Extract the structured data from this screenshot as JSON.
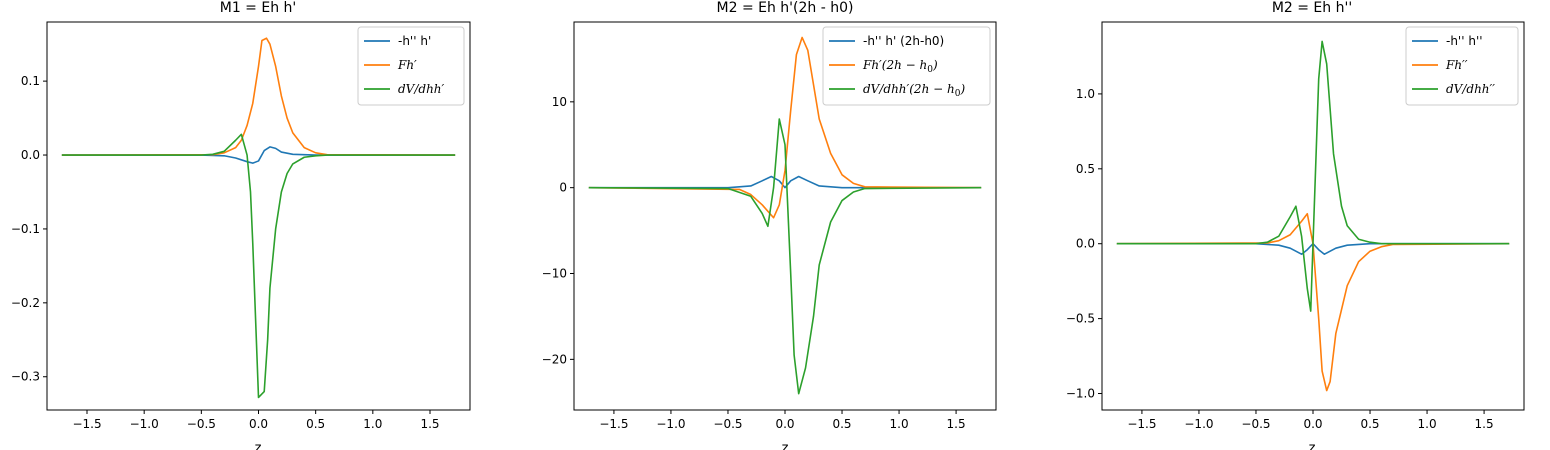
{
  "chart_data": [
    {
      "type": "line",
      "title": "M1 = Eh h'",
      "xlabel": "z",
      "ylabel": "",
      "xlim": [
        -1.85,
        1.85
      ],
      "ylim": [
        -0.345,
        0.18
      ],
      "xticks": [
        -1.5,
        -1.0,
        -0.5,
        0.0,
        0.5,
        1.0,
        1.5
      ],
      "xtick_labels": [
        "−1.5",
        "−1.0",
        "−0.5",
        "0.0",
        "0.5",
        "1.0",
        "1.5"
      ],
      "yticks": [
        0.1,
        0.0,
        -0.1,
        -0.2,
        -0.3
      ],
      "ytick_labels": [
        "0.1",
        "0.0",
        "−0.1",
        "−0.2",
        "−0.3"
      ],
      "legend": "top-right",
      "grid": false,
      "series": [
        {
          "name": "-h'' h'",
          "color": "#1f77b4",
          "x": [
            -1.72,
            -0.5,
            -0.3,
            -0.2,
            -0.1,
            -0.05,
            0.0,
            0.05,
            0.1,
            0.15,
            0.2,
            0.3,
            0.5,
            1.72
          ],
          "y": [
            0,
            0,
            -0.001,
            -0.004,
            -0.009,
            -0.011,
            -0.008,
            0.006,
            0.011,
            0.009,
            0.004,
            0.001,
            0,
            0
          ]
        },
        {
          "name": "Fh′",
          "color": "#ff7f0e",
          "x": [
            -1.72,
            -0.4,
            -0.3,
            -0.2,
            -0.15,
            -0.1,
            -0.05,
            0.0,
            0.03,
            0.07,
            0.1,
            0.15,
            0.2,
            0.25,
            0.3,
            0.4,
            0.5,
            0.6,
            1.72
          ],
          "y": [
            0,
            0.0005,
            0.003,
            0.01,
            0.02,
            0.04,
            0.07,
            0.12,
            0.155,
            0.158,
            0.15,
            0.12,
            0.08,
            0.05,
            0.03,
            0.01,
            0.003,
            0.0005,
            0
          ]
        },
        {
          "name": "dV/dhh′",
          "color": "#2ca02c",
          "x": [
            -1.72,
            -0.5,
            -0.4,
            -0.3,
            -0.2,
            -0.15,
            -0.1,
            -0.07,
            -0.05,
            0.0,
            0.05,
            0.08,
            0.1,
            0.15,
            0.2,
            0.25,
            0.3,
            0.4,
            0.5,
            0.6,
            1.72
          ],
          "y": [
            0,
            0,
            0.001,
            0.005,
            0.02,
            0.028,
            0.0,
            -0.05,
            -0.12,
            -0.328,
            -0.32,
            -0.25,
            -0.18,
            -0.1,
            -0.05,
            -0.025,
            -0.012,
            -0.003,
            -0.001,
            0,
            0
          ]
        }
      ]
    },
    {
      "type": "line",
      "title": "M2 = Eh h'(2h - h0)",
      "xlabel": "z",
      "ylabel": "",
      "xlim": [
        -1.85,
        1.85
      ],
      "ylim": [
        -25.9,
        19.3
      ],
      "xticks": [
        -1.5,
        -1.0,
        -0.5,
        0.0,
        0.5,
        1.0,
        1.5
      ],
      "xtick_labels": [
        "−1.5",
        "−1.0",
        "−0.5",
        "0.0",
        "0.5",
        "1.0",
        "1.5"
      ],
      "yticks": [
        10,
        0,
        -10,
        -20
      ],
      "ytick_labels": [
        "10",
        "0",
        "−10",
        "−20"
      ],
      "legend": "top-right",
      "grid": false,
      "series": [
        {
          "name": "-h'' h' (2h-h0)",
          "color": "#1f77b4",
          "x": [
            -1.72,
            -0.5,
            -0.3,
            -0.2,
            -0.12,
            -0.05,
            0.0,
            0.05,
            0.12,
            0.2,
            0.3,
            0.5,
            1.72
          ],
          "y": [
            0,
            0,
            0.2,
            0.8,
            1.3,
            0.8,
            0.0,
            0.8,
            1.3,
            0.8,
            0.2,
            0,
            0
          ]
        },
        {
          "name": "Fh′(2h − h0)",
          "color": "#ff7f0e",
          "x": [
            -1.72,
            -0.4,
            -0.3,
            -0.2,
            -0.1,
            -0.05,
            0.0,
            0.05,
            0.1,
            0.15,
            0.2,
            0.25,
            0.3,
            0.4,
            0.5,
            0.6,
            0.7,
            1.72
          ],
          "y": [
            0,
            -0.2,
            -0.8,
            -2.0,
            -3.5,
            -2.0,
            2.0,
            9.0,
            15.5,
            17.5,
            16.0,
            12.0,
            8.0,
            4.0,
            1.5,
            0.5,
            0.1,
            0
          ]
        },
        {
          "name": "dV/dhh′(2h − h0)",
          "color": "#2ca02c",
          "x": [
            -1.72,
            -0.5,
            -0.3,
            -0.2,
            -0.15,
            -0.1,
            -0.05,
            0.0,
            0.05,
            0.08,
            0.12,
            0.18,
            0.25,
            0.3,
            0.4,
            0.5,
            0.6,
            0.7,
            1.72
          ],
          "y": [
            0,
            -0.1,
            -1.0,
            -3.0,
            -4.5,
            0.0,
            8.0,
            5.0,
            -10.0,
            -19.5,
            -24.0,
            -21.0,
            -15.0,
            -9.0,
            -4.0,
            -1.5,
            -0.5,
            -0.1,
            0
          ]
        }
      ]
    },
    {
      "type": "line",
      "title": "M2 = Eh h''",
      "xlabel": "z",
      "ylabel": "",
      "xlim": [
        -1.85,
        1.85
      ],
      "ylim": [
        -1.11,
        1.48
      ],
      "xticks": [
        -1.5,
        -1.0,
        -0.5,
        0.0,
        0.5,
        1.0,
        1.5
      ],
      "xtick_labels": [
        "−1.5",
        "−1.0",
        "−0.5",
        "0.0",
        "0.5",
        "1.0",
        "1.5"
      ],
      "yticks": [
        1.0,
        0.5,
        0.0,
        -0.5,
        -1.0
      ],
      "ytick_labels": [
        "1.0",
        "0.5",
        "0.0",
        "−0.5",
        "−1.0"
      ],
      "legend": "top-right",
      "grid": false,
      "series": [
        {
          "name": "-h'' h''",
          "color": "#1f77b4",
          "x": [
            -1.72,
            -0.5,
            -0.3,
            -0.2,
            -0.1,
            -0.05,
            0.0,
            0.05,
            0.1,
            0.15,
            0.2,
            0.3,
            0.5,
            1.72
          ],
          "y": [
            0,
            0,
            -0.01,
            -0.03,
            -0.07,
            -0.04,
            0.0,
            -0.04,
            -0.07,
            -0.05,
            -0.03,
            -0.01,
            0,
            0
          ]
        },
        {
          "name": "Fh′′",
          "color": "#ff7f0e",
          "x": [
            -1.72,
            -0.4,
            -0.3,
            -0.2,
            -0.1,
            -0.05,
            0.0,
            0.05,
            0.08,
            0.12,
            0.15,
            0.2,
            0.3,
            0.4,
            0.5,
            0.6,
            0.7,
            1.72
          ],
          "y": [
            0,
            0.005,
            0.02,
            0.06,
            0.15,
            0.2,
            0.0,
            -0.5,
            -0.85,
            -0.98,
            -0.92,
            -0.6,
            -0.28,
            -0.12,
            -0.05,
            -0.02,
            -0.005,
            0
          ]
        },
        {
          "name": "dV/dhh′′",
          "color": "#2ca02c",
          "x": [
            -1.72,
            -0.5,
            -0.4,
            -0.3,
            -0.2,
            -0.15,
            -0.1,
            -0.05,
            -0.02,
            0.0,
            0.05,
            0.08,
            0.12,
            0.18,
            0.25,
            0.3,
            0.4,
            0.5,
            0.6,
            1.72
          ],
          "y": [
            0,
            0,
            0.01,
            0.05,
            0.18,
            0.25,
            0.05,
            -0.3,
            -0.45,
            0.0,
            1.1,
            1.35,
            1.2,
            0.6,
            0.25,
            0.12,
            0.03,
            0.01,
            0,
            0
          ]
        }
      ]
    }
  ]
}
